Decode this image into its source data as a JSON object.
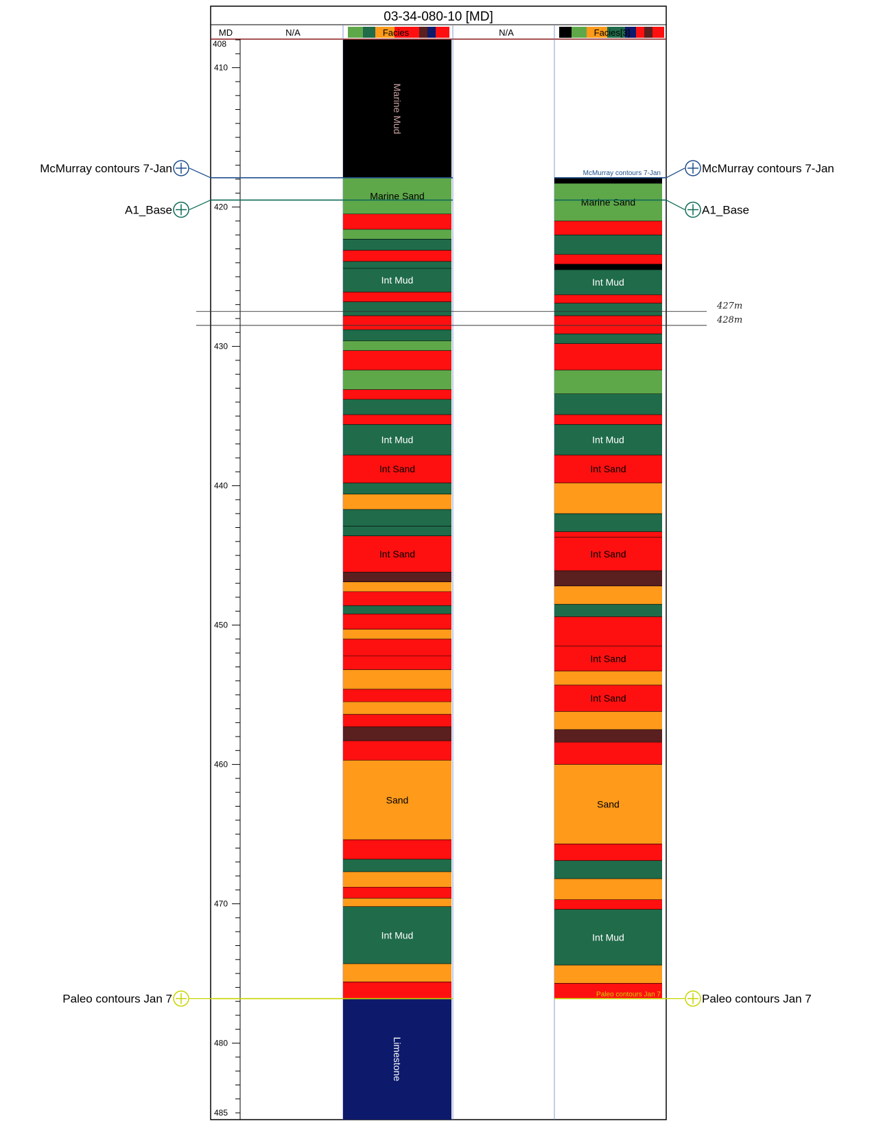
{
  "title": "03-34-080-10 [MD]",
  "tracks": {
    "md_header": "MD",
    "na_1": "N/A",
    "facies_1": "Facies",
    "na_2": "N/A",
    "facies_2": "Facies[3]"
  },
  "depth_axis": {
    "top_label": "408",
    "range": [
      408,
      486
    ],
    "ticks": [
      410,
      420,
      430,
      440,
      450,
      460,
      470,
      480,
      485
    ]
  },
  "markers": {
    "left": [
      {
        "label": "McMurray contours 7-Jan",
        "depth": 417.9,
        "color": "#1f4e8c"
      },
      {
        "label": "A1_Base",
        "depth": 419.5,
        "color": "#0e6b56"
      },
      {
        "label": "Paleo contours Jan 7",
        "depth": 476.8,
        "color": "#c8d400"
      }
    ],
    "right": [
      {
        "label": "McMurray contours 7-Jan",
        "depth": 417.9,
        "color": "#1f4e8c"
      },
      {
        "label": "A1_Base",
        "depth": 419.5,
        "color": "#0e6b56"
      },
      {
        "label": "Paleo contours Jan 7",
        "depth": 476.8,
        "color": "#c8d400"
      }
    ]
  },
  "in_track_marker_labels": {
    "mcmurray": "McMurray contours 7-Jan",
    "paleo": "Paleo contours Jan 7"
  },
  "annotations": [
    {
      "text": "427m",
      "depth": 427
    },
    {
      "text": "428m",
      "depth": 428
    }
  ],
  "colors": {
    "marine_mud": "#000000",
    "marine_sand": "#5fa84a",
    "int_mud": "#1f6b4a",
    "int_sand": "#ff1010",
    "sand": "#ff9a1a",
    "breccia": "#5a1f1f",
    "limestone": "#0d1a6b"
  },
  "facies_1": {
    "intervals": [
      {
        "top": 408.0,
        "base": 417.9,
        "facies": "marine_mud",
        "label": "Marine Mud"
      },
      {
        "top": 417.9,
        "base": 420.5,
        "facies": "marine_sand",
        "label": "Marine Sand"
      },
      {
        "top": 420.5,
        "base": 421.6,
        "facies": "int_sand"
      },
      {
        "top": 421.6,
        "base": 422.3,
        "facies": "marine_sand"
      },
      {
        "top": 422.3,
        "base": 423.1,
        "facies": "int_mud"
      },
      {
        "top": 423.1,
        "base": 423.9,
        "facies": "int_sand"
      },
      {
        "top": 423.9,
        "base": 424.4,
        "facies": "int_mud"
      },
      {
        "top": 424.4,
        "base": 426.1,
        "facies": "int_mud",
        "label": "Int Mud"
      },
      {
        "top": 426.1,
        "base": 426.8,
        "facies": "int_sand"
      },
      {
        "top": 426.8,
        "base": 427.8,
        "facies": "int_mud"
      },
      {
        "top": 427.8,
        "base": 428.8,
        "facies": "int_sand"
      },
      {
        "top": 428.8,
        "base": 429.6,
        "facies": "int_mud"
      },
      {
        "top": 429.6,
        "base": 430.3,
        "facies": "marine_sand"
      },
      {
        "top": 430.3,
        "base": 431.7,
        "facies": "int_sand"
      },
      {
        "top": 431.7,
        "base": 433.1,
        "facies": "marine_sand"
      },
      {
        "top": 433.1,
        "base": 433.8,
        "facies": "int_sand"
      },
      {
        "top": 433.8,
        "base": 434.9,
        "facies": "int_mud"
      },
      {
        "top": 434.9,
        "base": 435.6,
        "facies": "int_sand"
      },
      {
        "top": 435.6,
        "base": 437.8,
        "facies": "int_mud",
        "label": "Int Mud"
      },
      {
        "top": 437.8,
        "base": 439.8,
        "facies": "int_sand",
        "label": "Int Sand"
      },
      {
        "top": 439.8,
        "base": 440.6,
        "facies": "int_mud"
      },
      {
        "top": 440.6,
        "base": 441.7,
        "facies": "sand"
      },
      {
        "top": 441.7,
        "base": 442.9,
        "facies": "int_mud"
      },
      {
        "top": 442.9,
        "base": 443.6,
        "facies": "int_mud"
      },
      {
        "top": 443.6,
        "base": 446.2,
        "facies": "int_sand",
        "label": "Int Sand"
      },
      {
        "top": 446.2,
        "base": 446.9,
        "facies": "breccia"
      },
      {
        "top": 446.9,
        "base": 447.6,
        "facies": "sand"
      },
      {
        "top": 447.6,
        "base": 448.6,
        "facies": "int_sand"
      },
      {
        "top": 448.6,
        "base": 449.2,
        "facies": "int_mud"
      },
      {
        "top": 449.2,
        "base": 450.3,
        "facies": "int_sand"
      },
      {
        "top": 450.3,
        "base": 451.0,
        "facies": "sand"
      },
      {
        "top": 451.0,
        "base": 452.2,
        "facies": "int_sand"
      },
      {
        "top": 452.2,
        "base": 453.2,
        "facies": "int_sand"
      },
      {
        "top": 453.2,
        "base": 454.6,
        "facies": "sand"
      },
      {
        "top": 454.6,
        "base": 455.5,
        "facies": "int_sand"
      },
      {
        "top": 455.5,
        "base": 456.4,
        "facies": "sand"
      },
      {
        "top": 456.4,
        "base": 457.3,
        "facies": "int_sand"
      },
      {
        "top": 457.3,
        "base": 458.3,
        "facies": "breccia"
      },
      {
        "top": 458.3,
        "base": 459.7,
        "facies": "int_sand"
      },
      {
        "top": 459.7,
        "base": 465.4,
        "facies": "sand",
        "label": "Sand"
      },
      {
        "top": 465.4,
        "base": 466.8,
        "facies": "int_sand"
      },
      {
        "top": 466.8,
        "base": 467.7,
        "facies": "int_mud"
      },
      {
        "top": 467.7,
        "base": 468.8,
        "facies": "sand"
      },
      {
        "top": 468.8,
        "base": 469.6,
        "facies": "int_sand"
      },
      {
        "top": 469.6,
        "base": 470.2,
        "facies": "sand"
      },
      {
        "top": 470.2,
        "base": 474.3,
        "facies": "int_mud",
        "label": "Int Mud"
      },
      {
        "top": 474.3,
        "base": 475.6,
        "facies": "sand"
      },
      {
        "top": 475.6,
        "base": 476.8,
        "facies": "int_sand"
      },
      {
        "top": 476.8,
        "base": 486.0,
        "facies": "limestone",
        "label": "Limestone"
      }
    ]
  },
  "facies_2": {
    "intervals": [
      {
        "top": 417.9,
        "base": 418.3,
        "facies": "marine_mud"
      },
      {
        "top": 418.3,
        "base": 421.0,
        "facies": "marine_sand",
        "label": "Marine Sand"
      },
      {
        "top": 421.0,
        "base": 422.0,
        "facies": "int_sand"
      },
      {
        "top": 422.0,
        "base": 423.4,
        "facies": "int_mud"
      },
      {
        "top": 423.4,
        "base": 424.1,
        "facies": "int_sand"
      },
      {
        "top": 424.1,
        "base": 424.5,
        "facies": "marine_mud"
      },
      {
        "top": 424.5,
        "base": 426.3,
        "facies": "int_mud",
        "label": "Int Mud"
      },
      {
        "top": 426.3,
        "base": 426.9,
        "facies": "int_sand"
      },
      {
        "top": 426.9,
        "base": 427.8,
        "facies": "int_mud"
      },
      {
        "top": 427.8,
        "base": 429.1,
        "facies": "int_sand"
      },
      {
        "top": 429.1,
        "base": 429.8,
        "facies": "int_mud"
      },
      {
        "top": 429.8,
        "base": 431.7,
        "facies": "int_sand"
      },
      {
        "top": 431.7,
        "base": 433.4,
        "facies": "marine_sand"
      },
      {
        "top": 433.4,
        "base": 434.9,
        "facies": "int_mud"
      },
      {
        "top": 434.9,
        "base": 435.6,
        "facies": "int_sand"
      },
      {
        "top": 435.6,
        "base": 437.8,
        "facies": "int_mud",
        "label": "Int Mud"
      },
      {
        "top": 437.8,
        "base": 439.8,
        "facies": "int_sand",
        "label": "Int Sand"
      },
      {
        "top": 439.8,
        "base": 442.0,
        "facies": "sand"
      },
      {
        "top": 442.0,
        "base": 443.3,
        "facies": "int_mud"
      },
      {
        "top": 443.3,
        "base": 443.7,
        "facies": "int_sand"
      },
      {
        "top": 443.7,
        "base": 446.1,
        "facies": "int_sand",
        "label": "Int Sand"
      },
      {
        "top": 446.1,
        "base": 447.2,
        "facies": "breccia"
      },
      {
        "top": 447.2,
        "base": 448.5,
        "facies": "sand"
      },
      {
        "top": 448.5,
        "base": 449.4,
        "facies": "int_mud"
      },
      {
        "top": 449.4,
        "base": 451.5,
        "facies": "int_sand"
      },
      {
        "top": 451.5,
        "base": 453.3,
        "facies": "int_sand",
        "label": "Int Sand"
      },
      {
        "top": 453.3,
        "base": 454.3,
        "facies": "sand"
      },
      {
        "top": 454.3,
        "base": 456.2,
        "facies": "int_sand",
        "label": "Int Sand"
      },
      {
        "top": 456.2,
        "base": 457.5,
        "facies": "sand"
      },
      {
        "top": 457.5,
        "base": 458.4,
        "facies": "breccia"
      },
      {
        "top": 458.4,
        "base": 460.0,
        "facies": "int_sand"
      },
      {
        "top": 460.0,
        "base": 465.7,
        "facies": "sand",
        "label": "Sand"
      },
      {
        "top": 465.7,
        "base": 466.9,
        "facies": "int_sand"
      },
      {
        "top": 466.9,
        "base": 468.2,
        "facies": "int_mud"
      },
      {
        "top": 468.2,
        "base": 469.7,
        "facies": "sand"
      },
      {
        "top": 469.7,
        "base": 470.4,
        "facies": "int_sand"
      },
      {
        "top": 470.4,
        "base": 474.4,
        "facies": "int_mud",
        "label": "Int Mud"
      },
      {
        "top": 474.4,
        "base": 475.7,
        "facies": "sand"
      },
      {
        "top": 475.7,
        "base": 476.8,
        "facies": "int_sand"
      }
    ]
  }
}
